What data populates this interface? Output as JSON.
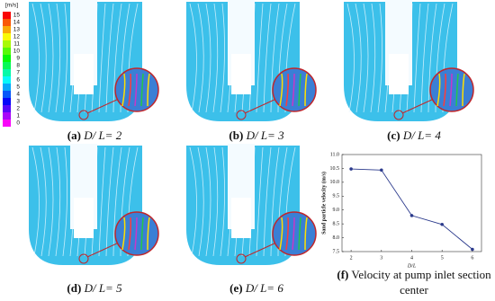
{
  "colorbar": {
    "unit": "[m/s]",
    "ticks": [
      15,
      14,
      13,
      12,
      11,
      10,
      9,
      8,
      7,
      6,
      5,
      4,
      3,
      2,
      1,
      0
    ]
  },
  "panels": [
    {
      "label": "(a)",
      "text": "D/ L= 2"
    },
    {
      "label": "(b)",
      "text": "D/ L= 3"
    },
    {
      "label": "(c)",
      "text": "D/ L= 4"
    },
    {
      "label": "(d)",
      "text": "D/ L= 5"
    },
    {
      "label": "(e)",
      "text": "D/ L= 6"
    }
  ],
  "chart_data": {
    "type": "line",
    "label": "(f)",
    "caption": "Velocity at pump inlet section",
    "caption2": "center",
    "x_label": "D/L",
    "y_label": "Sand particle velocity (m/s)",
    "x": [
      2,
      3,
      4,
      5,
      6
    ],
    "values": [
      10.48,
      10.44,
      8.8,
      8.48,
      7.58
    ],
    "color": "#2b3a8c",
    "xlim": [
      1.7,
      6.3
    ],
    "xticks": [
      2,
      3,
      4,
      5,
      6
    ],
    "ylim": [
      7.5,
      11
    ],
    "yticks": [
      7.5,
      {
        "value": 8,
        "label": "8.0"
      },
      8.5,
      {
        "value": 9,
        "label": "9.0"
      },
      9.5,
      {
        "value": 10,
        "label": "10.0"
      },
      10.5,
      {
        "value": 11,
        "label": "11.0"
      }
    ]
  }
}
